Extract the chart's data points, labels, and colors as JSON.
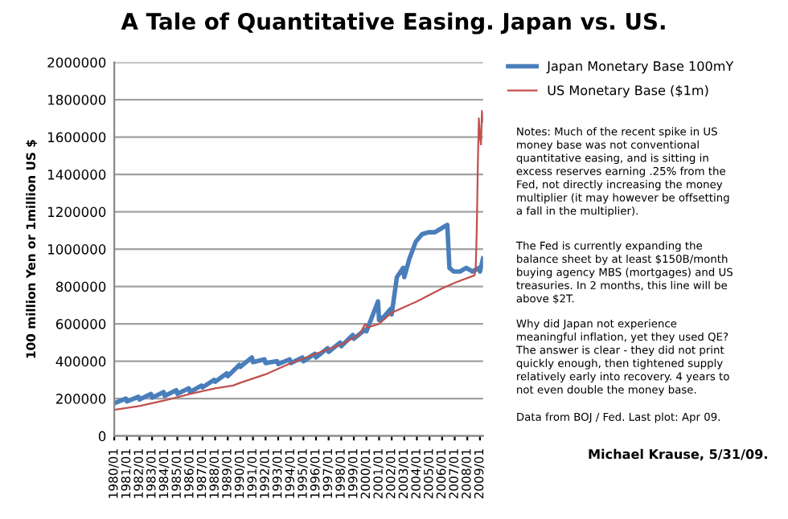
{
  "chart_data": {
    "type": "line",
    "title": "A Tale of Quantitative Easing. Japan vs. US.",
    "ylabel": "100 million Yen or 1million US $",
    "series": [
      {
        "name": "Japan Monetary Base 100mY",
        "color": "#4a7ebb",
        "x": [
          "1980-01",
          "1980-12",
          "1981-01",
          "1981-12",
          "1982-01",
          "1982-12",
          "1983-01",
          "1983-12",
          "1984-01",
          "1984-12",
          "1985-01",
          "1985-12",
          "1986-01",
          "1986-12",
          "1987-01",
          "1987-12",
          "1988-01",
          "1988-12",
          "1989-01",
          "1989-12",
          "1990-01",
          "1990-12",
          "1991-01",
          "1991-12",
          "1992-01",
          "1992-12",
          "1993-01",
          "1993-12",
          "1994-01",
          "1994-12",
          "1995-01",
          "1995-12",
          "1996-01",
          "1996-12",
          "1997-01",
          "1997-12",
          "1998-01",
          "1998-12",
          "1999-01",
          "1999-12",
          "2000-01",
          "2000-12",
          "2001-01",
          "2001-06",
          "2001-12",
          "2002-01",
          "2002-06",
          "2002-12",
          "2003-01",
          "2003-06",
          "2003-12",
          "2004-06",
          "2004-12",
          "2005-06",
          "2005-12",
          "2006-03",
          "2006-06",
          "2006-08",
          "2006-12",
          "2007-06",
          "2007-12",
          "2008-06",
          "2008-12",
          "2009-01",
          "2009-04"
        ],
        "values": [
          175000,
          200000,
          185000,
          210000,
          195000,
          225000,
          205000,
          235000,
          215000,
          245000,
          225000,
          255000,
          235000,
          270000,
          260000,
          300000,
          290000,
          335000,
          320000,
          380000,
          370000,
          420000,
          395000,
          410000,
          390000,
          400000,
          385000,
          410000,
          390000,
          420000,
          400000,
          440000,
          420000,
          470000,
          450000,
          500000,
          480000,
          540000,
          520000,
          570000,
          560000,
          720000,
          620000,
          640000,
          680000,
          650000,
          850000,
          900000,
          850000,
          950000,
          1040000,
          1080000,
          1090000,
          1090000,
          1110000,
          1120000,
          1130000,
          900000,
          880000,
          880000,
          900000,
          880000,
          900000,
          880000,
          950000
        ]
      },
      {
        "name": "US Monetary Base ($1m)",
        "color": "#c0504d",
        "x": [
          "1980-01",
          "1982-01",
          "1984-01",
          "1986-01",
          "1988-01",
          "1989-06",
          "1990-01",
          "1992-01",
          "1994-01",
          "1996-01",
          "1998-01",
          "1999-06",
          "1999-12",
          "2000-02",
          "2001-01",
          "2002-01",
          "2004-01",
          "2006-01",
          "2007-01",
          "2008-08",
          "2008-09",
          "2008-10",
          "2008-11",
          "2008-12",
          "2009-01",
          "2009-02",
          "2009-03",
          "2009-04"
        ],
        "values": [
          140000,
          160000,
          190000,
          225000,
          255000,
          270000,
          285000,
          330000,
          390000,
          440000,
          490000,
          540000,
          600000,
          580000,
          600000,
          660000,
          720000,
          790000,
          820000,
          860000,
          900000,
          1100000,
          1450000,
          1700000,
          1600000,
          1560000,
          1740000,
          1680000
        ]
      }
    ],
    "xlim": [
      "1980-01",
      "2009-04"
    ],
    "xticks": [
      {
        "value": "1980-01",
        "label": "1980/01"
      },
      {
        "value": "1981-01",
        "label": "1981/01"
      },
      {
        "value": "1982-01",
        "label": "1982/01"
      },
      {
        "value": "1983-01",
        "label": "1983/01"
      },
      {
        "value": "1984-01",
        "label": "1984/01"
      },
      {
        "value": "1985-01",
        "label": "1985/01"
      },
      {
        "value": "1986-01",
        "label": "1986/01"
      },
      {
        "value": "1987-01",
        "label": "1987/01"
      },
      {
        "value": "1988-01",
        "label": "1988/01"
      },
      {
        "value": "1989-01",
        "label": "1989/01"
      },
      {
        "value": "1990-01",
        "label": "1990/01"
      },
      {
        "value": "1991-01",
        "label": "1991/01"
      },
      {
        "value": "1992-01",
        "label": "1992/01"
      },
      {
        "value": "1993-01",
        "label": "1993/01"
      },
      {
        "value": "1994-01",
        "label": "1994/01"
      },
      {
        "value": "1995-01",
        "label": "1995/01"
      },
      {
        "value": "1996-01",
        "label": "1996/01"
      },
      {
        "value": "1997-01",
        "label": "1997/01"
      },
      {
        "value": "1998-01",
        "label": "1998/01"
      },
      {
        "value": "1999-01",
        "label": "1999/01"
      },
      {
        "value": "2000-01",
        "label": "2000/01"
      },
      {
        "value": "2001-01",
        "label": "2001/01"
      },
      {
        "value": "2002-01",
        "label": "2002/01"
      },
      {
        "value": "2003-01",
        "label": "2003/01"
      },
      {
        "value": "2004-01",
        "label": "2004/01"
      },
      {
        "value": "2005-01",
        "label": "2005/01"
      },
      {
        "value": "2006-01",
        "label": "2006/01"
      },
      {
        "value": "2007-01",
        "label": "2007/01"
      },
      {
        "value": "2008-01",
        "label": "2008/01"
      },
      {
        "value": "2009-01",
        "label": "2009/01"
      }
    ],
    "ylim": [
      0,
      2000000
    ],
    "yticks": [
      0,
      200000,
      400000,
      600000,
      800000,
      1000000,
      1200000,
      1400000,
      1600000,
      1800000,
      2000000
    ],
    "grid": "y",
    "legend": "top right",
    "annotations": [
      "Notes: Much of the recent spike in US\nmoney base was not conventional\nquantitative easing, and is sitting in\nexcess reserves earning .25% from the\nFed, not directly increasing the money\nmultiplier (it may however be offsetting\na fall in the multiplier).",
      "The Fed is currently expanding the\nbalance sheet by at least $150B/month\nbuying agency MBS (mortgages) and US\ntreasuries. In 2 months, this line will be\nabove $2T.",
      "Why did Japan not experience\nmeaningful inflation, yet they used QE?\nThe answer is clear - they did not print\nquickly enough, then tightened supply\nrelatively early into recovery. 4 years to\nnot even double the money base.",
      "Data from BOJ / Fed. Last plot: Apr 09.",
      "Michael Krause, 5/31/09."
    ]
  }
}
